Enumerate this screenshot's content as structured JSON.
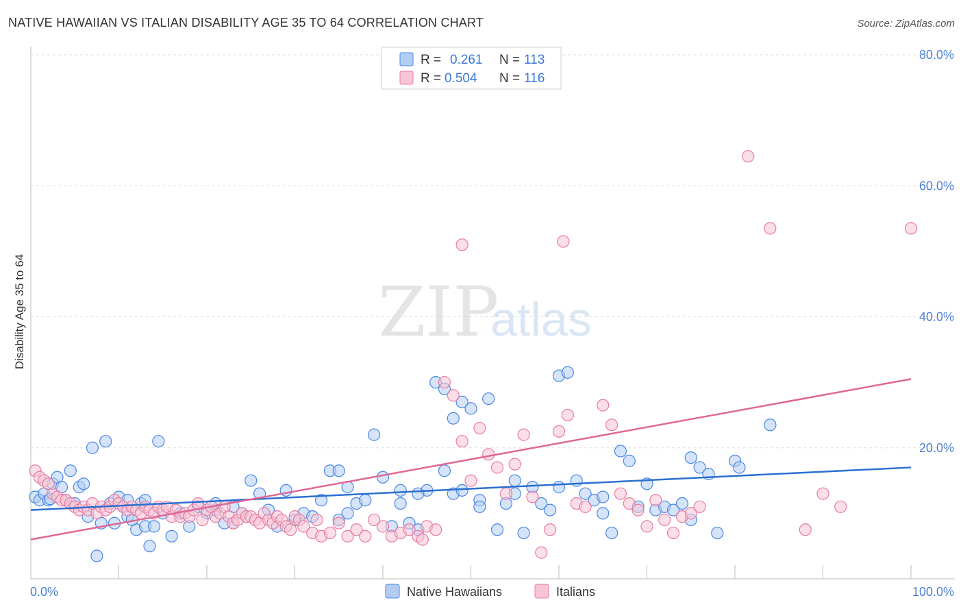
{
  "title": "NATIVE HAWAIIAN VS ITALIAN DISABILITY AGE 35 TO 64 CORRELATION CHART",
  "source": "Source: ZipAtlas.com",
  "watermark": {
    "zip": "ZIP",
    "atlas": "atlas"
  },
  "legend": {
    "r_label": "R =",
    "n_label": "N =",
    "items": [
      {
        "name": "Native Hawaiians",
        "r": "0.261",
        "n": "113",
        "fill": "#b3cdf2",
        "stroke": "#4a86e8",
        "line": "#2b6fd0"
      },
      {
        "name": "Italians",
        "r": "0.504",
        "n": "116",
        "fill": "#f8c5d5",
        "stroke": "#e87ba0",
        "line": "#e06694"
      }
    ]
  },
  "chart_data": {
    "type": "scatter",
    "title": "NATIVE HAWAIIAN VS ITALIAN DISABILITY AGE 35 TO 64 CORRELATION CHART",
    "xlabel": "",
    "ylabel": "Disability Age 35 to 64",
    "xlim": [
      0,
      100
    ],
    "ylim": [
      0,
      80
    ],
    "x_ticks": [
      "0.0%",
      "100.0%"
    ],
    "y_ticks": [
      "20.0%",
      "40.0%",
      "60.0%",
      "80.0%"
    ],
    "grid": true,
    "legend_position": "top-center",
    "series": [
      {
        "name": "Native Hawaiians",
        "color": "#4a86e8",
        "trend": [
          [
            0,
            10.5
          ],
          [
            100,
            17.0
          ]
        ],
        "points": [
          [
            0.5,
            12.5
          ],
          [
            1,
            12.0
          ],
          [
            1.5,
            13.0
          ],
          [
            2,
            12.0
          ],
          [
            2.5,
            14.5
          ],
          [
            3,
            15.5
          ],
          [
            3.5,
            14.0
          ],
          [
            4,
            12.0
          ],
          [
            4.5,
            16.5
          ],
          [
            5,
            11.5
          ],
          [
            5.5,
            14.0
          ],
          [
            6,
            14.5
          ],
          [
            6.5,
            9.5
          ],
          [
            7,
            20.0
          ],
          [
            7.5,
            3.5
          ],
          [
            8,
            8.5
          ],
          [
            8.5,
            21.0
          ],
          [
            9,
            11.5
          ],
          [
            9.5,
            8.5
          ],
          [
            10,
            12.5
          ],
          [
            10.5,
            11.0
          ],
          [
            11,
            9.5
          ],
          [
            11.5,
            9.0
          ],
          [
            12,
            7.5
          ],
          [
            12.5,
            11.5
          ],
          [
            13,
            8.0
          ],
          [
            13.5,
            5.0
          ],
          [
            14,
            8.0
          ],
          [
            14.5,
            21.0
          ],
          [
            15,
            10.0
          ],
          [
            16,
            6.5
          ],
          [
            17,
            10.0
          ],
          [
            18,
            8.0
          ],
          [
            19,
            11.0
          ],
          [
            20,
            10.0
          ],
          [
            21,
            10.5
          ],
          [
            22,
            8.5
          ],
          [
            23,
            11.0
          ],
          [
            24,
            10.0
          ],
          [
            25,
            15.0
          ],
          [
            26,
            13.0
          ],
          [
            27,
            10.5
          ],
          [
            28,
            8.0
          ],
          [
            29,
            13.5
          ],
          [
            30,
            9.0
          ],
          [
            31,
            10.0
          ],
          [
            32,
            9.5
          ],
          [
            33,
            12.0
          ],
          [
            34,
            16.5
          ],
          [
            35,
            16.5
          ],
          [
            36,
            14.0
          ],
          [
            37,
            11.5
          ],
          [
            38,
            12.0
          ],
          [
            39,
            22.0
          ],
          [
            40,
            15.5
          ],
          [
            41,
            8.0
          ],
          [
            42,
            11.5
          ],
          [
            43,
            8.5
          ],
          [
            44,
            7.5
          ],
          [
            45,
            13.5
          ],
          [
            46,
            30.0
          ],
          [
            47,
            16.5
          ],
          [
            48,
            13.0
          ],
          [
            49,
            13.5
          ],
          [
            50,
            26.0
          ],
          [
            51,
            12.0
          ],
          [
            52,
            27.5
          ],
          [
            53,
            7.5
          ],
          [
            54,
            11.5
          ],
          [
            55,
            15.0
          ],
          [
            56,
            7.0
          ],
          [
            57,
            14.0
          ],
          [
            58,
            11.5
          ],
          [
            59,
            10.5
          ],
          [
            60,
            31.0
          ],
          [
            61,
            31.5
          ],
          [
            62,
            15.0
          ],
          [
            63,
            13.0
          ],
          [
            64,
            12.0
          ],
          [
            65,
            10.0
          ],
          [
            66,
            7.0
          ],
          [
            67,
            19.5
          ],
          [
            68,
            18.0
          ],
          [
            69,
            11.0
          ],
          [
            70,
            14.5
          ],
          [
            71,
            10.5
          ],
          [
            72,
            11.0
          ],
          [
            73,
            10.5
          ],
          [
            74,
            11.5
          ],
          [
            75,
            9.0
          ],
          [
            76,
            17.0
          ],
          [
            77,
            16.0
          ],
          [
            78,
            7.0
          ],
          [
            80,
            18.0
          ],
          [
            80.5,
            17.0
          ],
          [
            84,
            23.5
          ],
          [
            2.2,
            12.2
          ],
          [
            11,
            12.0
          ],
          [
            13,
            12.0
          ],
          [
            21,
            11.5
          ],
          [
            23,
            8.5
          ],
          [
            35,
            9.0
          ],
          [
            36,
            10.0
          ],
          [
            42,
            13.5
          ],
          [
            44,
            13.0
          ],
          [
            47,
            29.0
          ],
          [
            48,
            24.5
          ],
          [
            49,
            27.0
          ],
          [
            51,
            11.0
          ],
          [
            55,
            13.0
          ],
          [
            60,
            14.0
          ],
          [
            65,
            12.5
          ],
          [
            75,
            18.5
          ]
        ]
      },
      {
        "name": "Italians",
        "color": "#e87ba0",
        "trend": [
          [
            0,
            6.0
          ],
          [
            100,
            30.5
          ]
        ],
        "points": [
          [
            0.5,
            16.5
          ],
          [
            1,
            15.5
          ],
          [
            1.5,
            15.0
          ],
          [
            2,
            14.5
          ],
          [
            2.5,
            13.0
          ],
          [
            3,
            12.5
          ],
          [
            3.5,
            12.0
          ],
          [
            4,
            12.0
          ],
          [
            4.5,
            11.5
          ],
          [
            5,
            11.0
          ],
          [
            5.5,
            10.5
          ],
          [
            6,
            11.0
          ],
          [
            6.5,
            10.5
          ],
          [
            7,
            11.5
          ],
          [
            7.5,
            10.0
          ],
          [
            8,
            11.0
          ],
          [
            8.5,
            10.5
          ],
          [
            9,
            11.0
          ],
          [
            9.5,
            12.0
          ],
          [
            10,
            11.5
          ],
          [
            10.5,
            11.0
          ],
          [
            11,
            10.5
          ],
          [
            11.5,
            11.0
          ],
          [
            12,
            10.5
          ],
          [
            12.5,
            10.0
          ],
          [
            13,
            11.0
          ],
          [
            13.5,
            10.5
          ],
          [
            14,
            10.0
          ],
          [
            14.5,
            11.0
          ],
          [
            15,
            10.5
          ],
          [
            15.5,
            11.0
          ],
          [
            16,
            9.5
          ],
          [
            16.5,
            10.5
          ],
          [
            17,
            9.5
          ],
          [
            17.5,
            10.0
          ],
          [
            18,
            9.5
          ],
          [
            18.5,
            10.5
          ],
          [
            19,
            11.5
          ],
          [
            19.5,
            9.0
          ],
          [
            20,
            10.5
          ],
          [
            20.5,
            11.0
          ],
          [
            21,
            9.5
          ],
          [
            21.5,
            10.0
          ],
          [
            22,
            11.0
          ],
          [
            22.5,
            9.5
          ],
          [
            23,
            8.5
          ],
          [
            23.5,
            9.0
          ],
          [
            24,
            10.0
          ],
          [
            24.5,
            9.5
          ],
          [
            25,
            9.5
          ],
          [
            25.5,
            9.0
          ],
          [
            26,
            8.5
          ],
          [
            26.5,
            10.0
          ],
          [
            27,
            9.0
          ],
          [
            27.5,
            8.5
          ],
          [
            28,
            9.5
          ],
          [
            28.5,
            9.0
          ],
          [
            29,
            8.0
          ],
          [
            29.5,
            7.5
          ],
          [
            30,
            9.5
          ],
          [
            30.5,
            9.0
          ],
          [
            31,
            8.0
          ],
          [
            32,
            7.0
          ],
          [
            32.5,
            9.0
          ],
          [
            33,
            6.5
          ],
          [
            34,
            7.0
          ],
          [
            35,
            8.5
          ],
          [
            36,
            6.5
          ],
          [
            37,
            7.5
          ],
          [
            38,
            6.5
          ],
          [
            39,
            9.0
          ],
          [
            40,
            8.0
          ],
          [
            41,
            6.5
          ],
          [
            42,
            7.0
          ],
          [
            43,
            7.5
          ],
          [
            44,
            6.5
          ],
          [
            45,
            8.0
          ],
          [
            46,
            7.5
          ],
          [
            47,
            30.0
          ],
          [
            48,
            28.0
          ],
          [
            49,
            21.0
          ],
          [
            50,
            15.0
          ],
          [
            51,
            23.0
          ],
          [
            52,
            19.0
          ],
          [
            53,
            17.0
          ],
          [
            54,
            13.0
          ],
          [
            55,
            17.5
          ],
          [
            56,
            22.0
          ],
          [
            57,
            12.5
          ],
          [
            58,
            4.0
          ],
          [
            59,
            7.5
          ],
          [
            60,
            22.5
          ],
          [
            61,
            25.0
          ],
          [
            62,
            11.5
          ],
          [
            63,
            11.0
          ],
          [
            65,
            26.5
          ],
          [
            66,
            23.5
          ],
          [
            67,
            13.0
          ],
          [
            68,
            11.5
          ],
          [
            69,
            10.5
          ],
          [
            70,
            8.0
          ],
          [
            71,
            12.0
          ],
          [
            72,
            9.0
          ],
          [
            73,
            7.0
          ],
          [
            74,
            9.5
          ],
          [
            75,
            10.0
          ],
          [
            76,
            11.0
          ],
          [
            49,
            51.0
          ],
          [
            60.5,
            51.5
          ],
          [
            81.5,
            64.5
          ],
          [
            84,
            53.5
          ],
          [
            100,
            53.5
          ],
          [
            88,
            7.5
          ],
          [
            90,
            13.0
          ],
          [
            92,
            11.0
          ],
          [
            44.5,
            6.0
          ]
        ]
      }
    ]
  }
}
